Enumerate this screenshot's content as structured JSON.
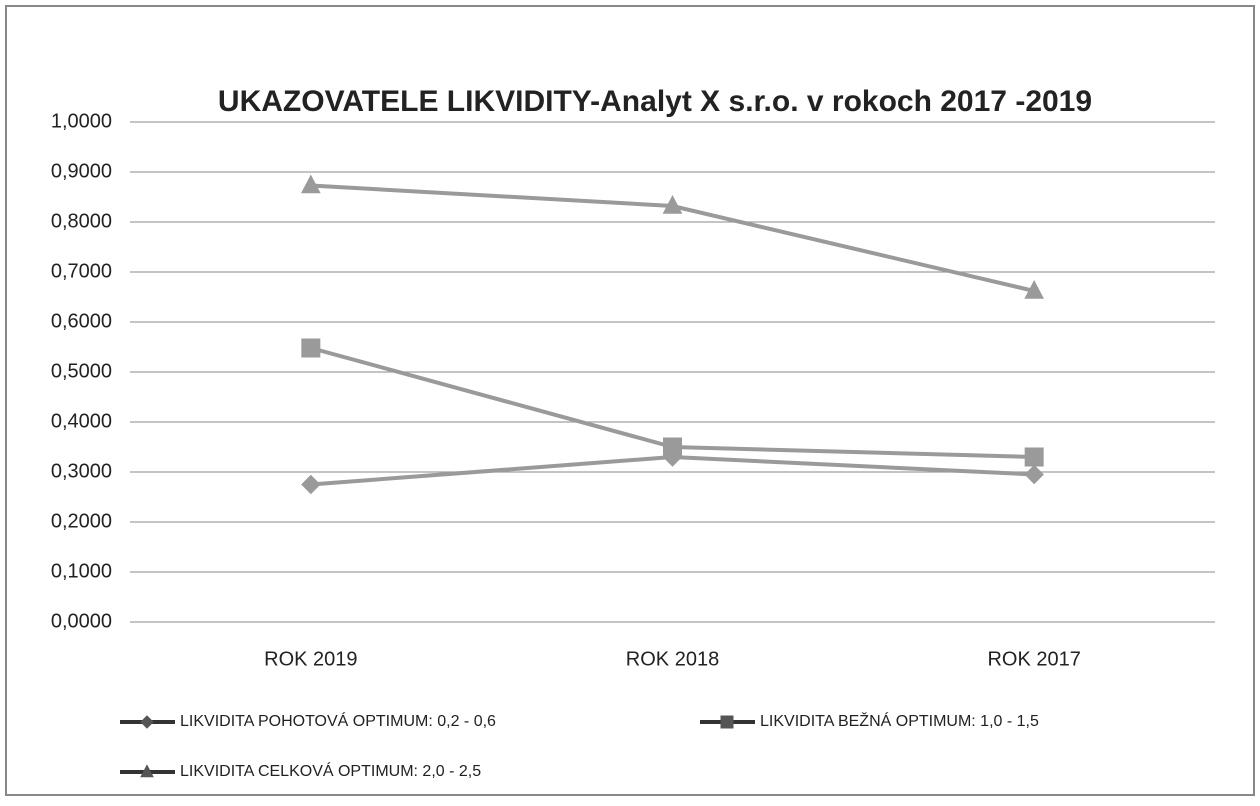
{
  "chart_data": {
    "type": "line",
    "title": "UKAZOVATELE LIKVIDITY-Analyt X s.r.o.  v rokoch 2017 -2019",
    "categories": [
      "ROK 2019",
      "ROK 2018",
      "ROK 2017"
    ],
    "series": [
      {
        "name": "LIKVIDITA POHOTOVÁ OPTIMUM: 0,2 - 0,6",
        "color": "#9a9a9a",
        "marker": "diamond",
        "values": [
          0.275,
          0.33,
          0.295
        ]
      },
      {
        "name": "LIKVIDITA BEŽNÁ OPTIMUM: 1,0 - 1,5",
        "color": "#9a9a9a",
        "marker": "square",
        "values": [
          0.548,
          0.35,
          0.33
        ]
      },
      {
        "name": "LIKVIDITA CELKOVÁ OPTIMUM: 2,0 - 2,5",
        "color": "#9a9a9a",
        "marker": "triangle",
        "values": [
          0.873,
          0.832,
          0.662
        ]
      }
    ],
    "ylim": [
      0,
      1
    ],
    "yticks": [
      {
        "value": 0,
        "label": "0,0000"
      },
      {
        "value": 0.1,
        "label": "0,1000"
      },
      {
        "value": 0.2,
        "label": "0,2000"
      },
      {
        "value": 0.3,
        "label": "0,3000"
      },
      {
        "value": 0.4,
        "label": "0,4000"
      },
      {
        "value": 0.5,
        "label": "0,5000"
      },
      {
        "value": 0.6,
        "label": "0,6000"
      },
      {
        "value": 0.7,
        "label": "0,7000"
      },
      {
        "value": 0.8,
        "label": "0,8000"
      },
      {
        "value": 0.9,
        "label": "0,9000"
      },
      {
        "value": 1,
        "label": "1,0000"
      }
    ],
    "grid": true,
    "legend": "bottom"
  }
}
